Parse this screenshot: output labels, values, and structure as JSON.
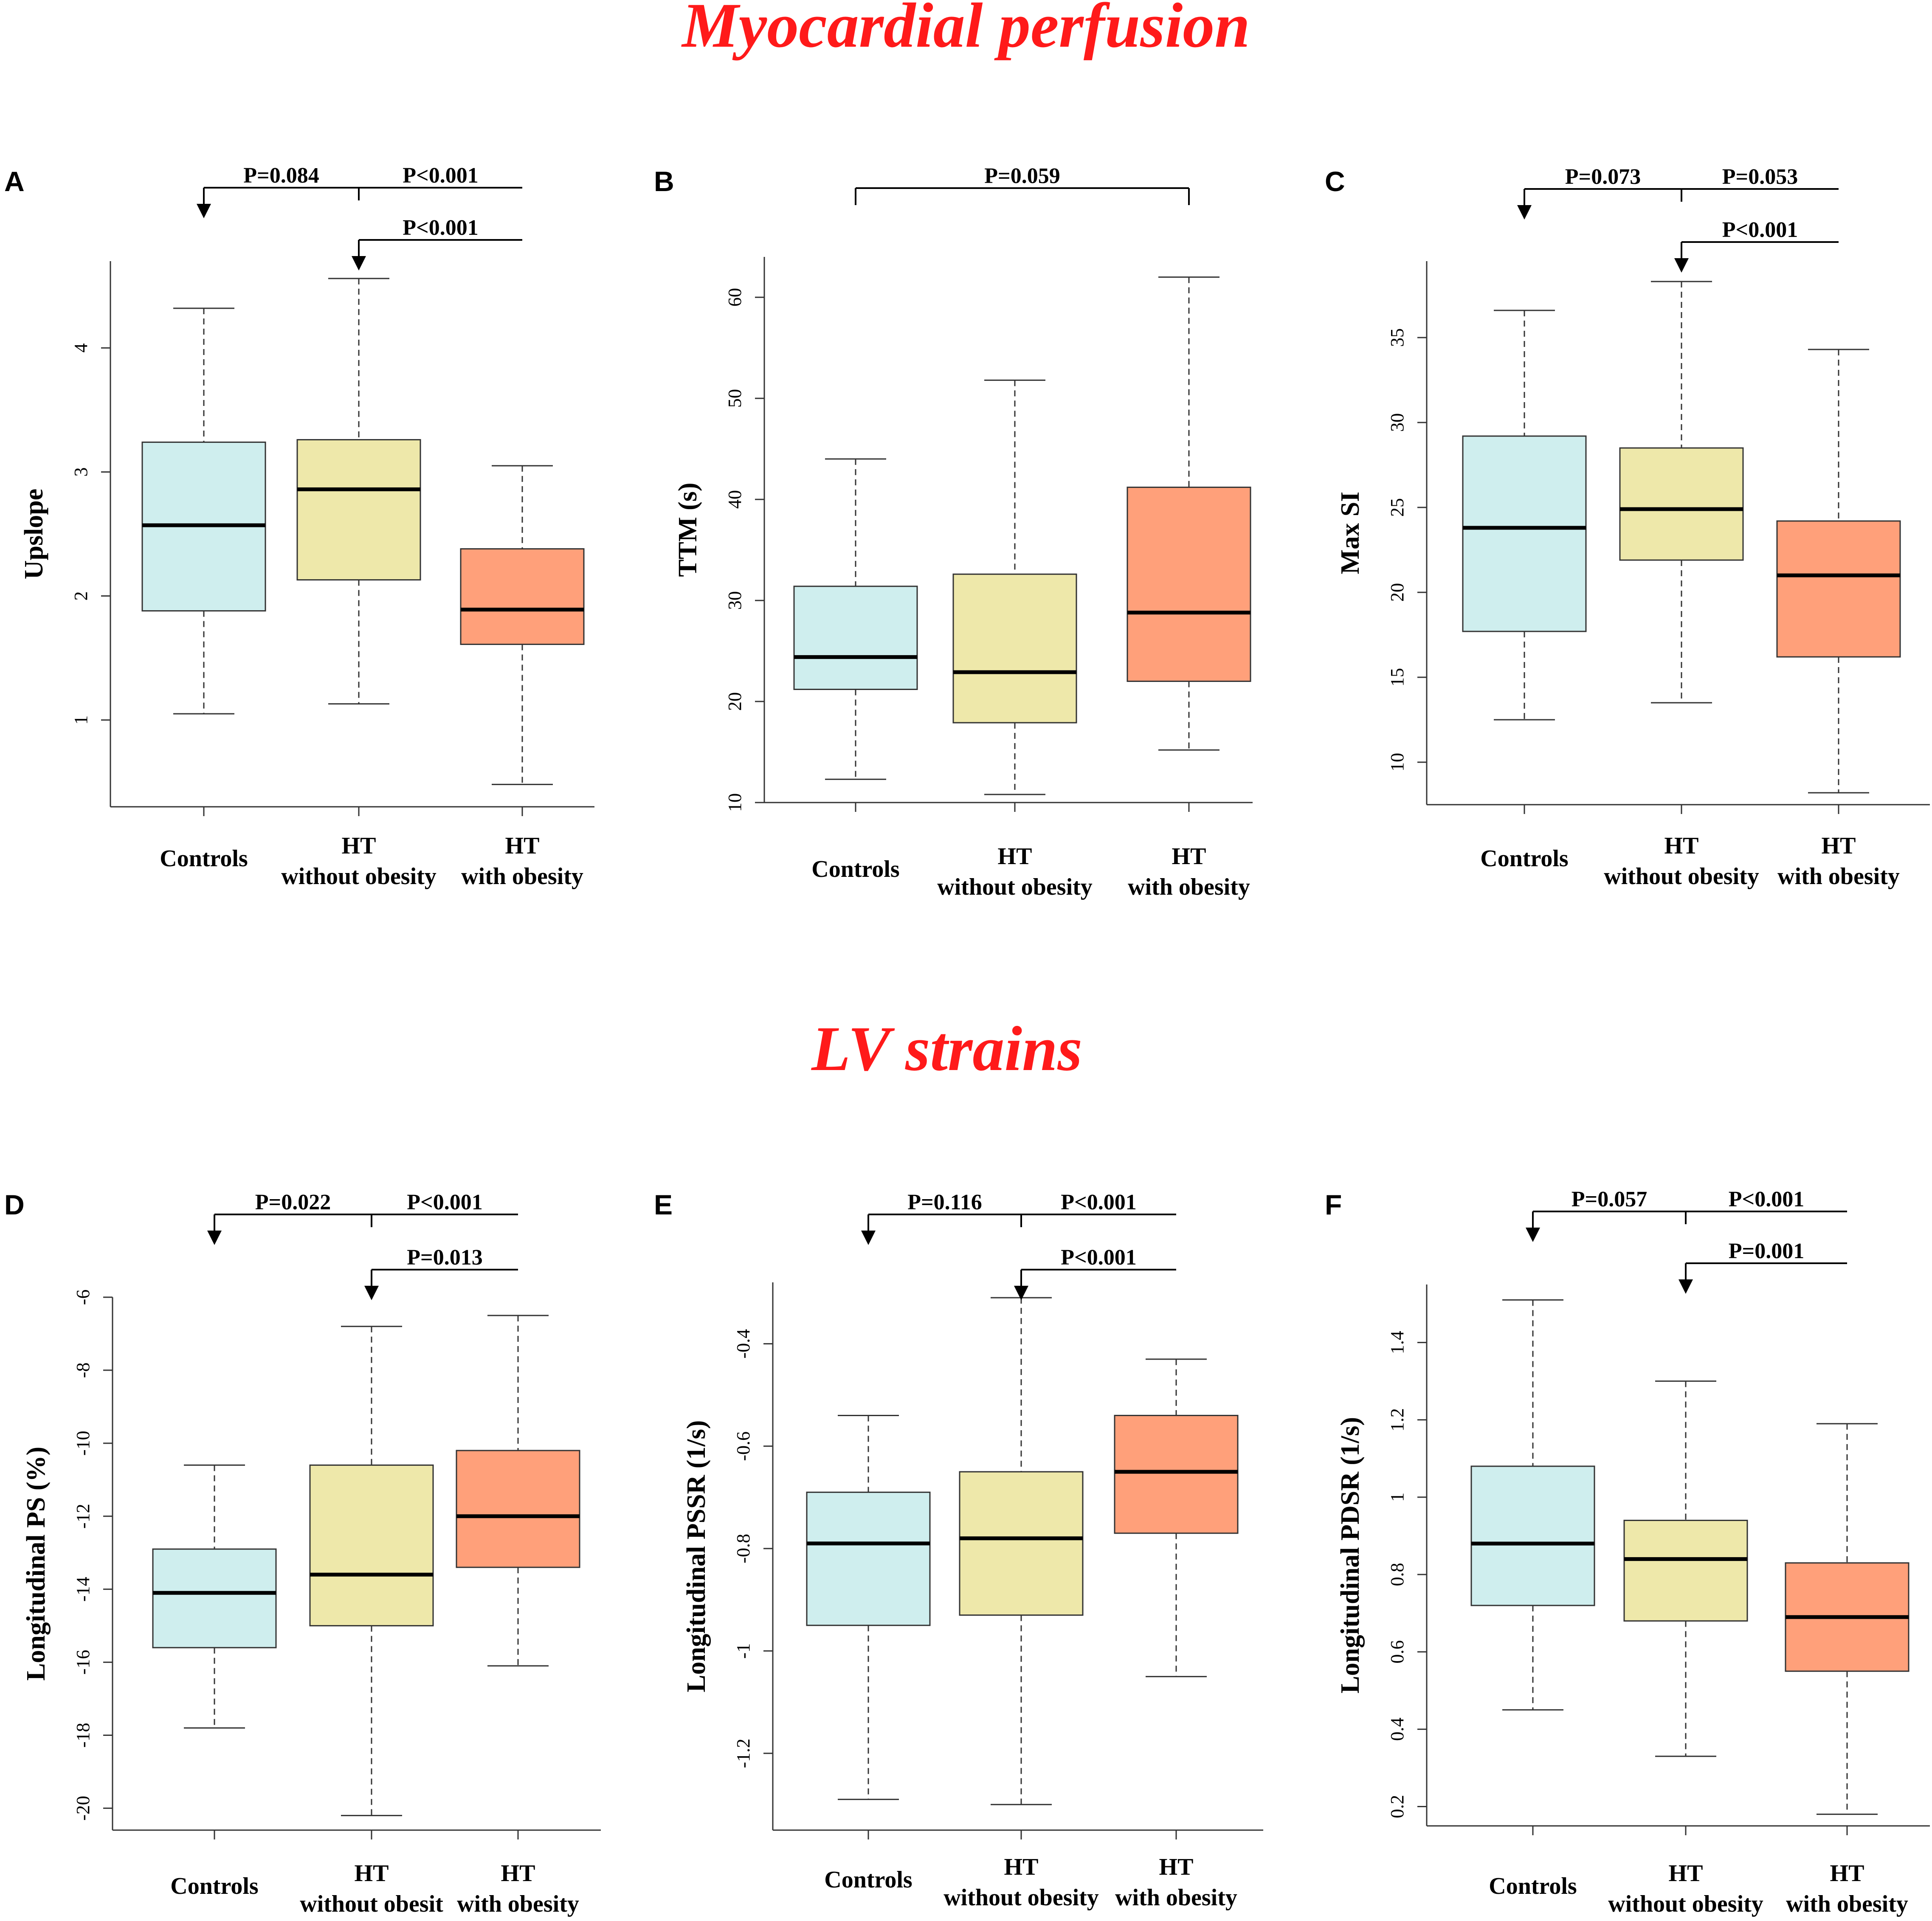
{
  "section_titles": {
    "perfusion": "Myocardial perfusion",
    "strains": "LV strains"
  },
  "colors": {
    "title": "#ff1a1a",
    "controls": "#cfeeee",
    "ht_without_obesity": "#eee8aa",
    "ht_with_obesity": "#ffa07a",
    "axis": "#333333"
  },
  "chart_data": [
    {
      "type": "box",
      "panel": "A",
      "ylabel": "Upslope",
      "categories": [
        [
          "Controls"
        ],
        [
          "HT",
          "without obesity"
        ],
        [
          "HT",
          "with obesity"
        ]
      ],
      "ylim": [
        0.3,
        4.7
      ],
      "yticks": [
        1,
        2,
        3,
        4
      ],
      "boxes": [
        {
          "min": 1.05,
          "q1": 1.88,
          "median": 2.57,
          "q3": 3.24,
          "max": 4.32
        },
        {
          "min": 1.13,
          "q1": 2.13,
          "median": 2.86,
          "q3": 3.26,
          "max": 4.56
        },
        {
          "min": 0.48,
          "q1": 1.61,
          "median": 1.89,
          "q3": 2.38,
          "max": 3.05
        }
      ],
      "comparisons": [
        {
          "p": "P=0.084",
          "from": 1,
          "to": 0,
          "level": 0
        },
        {
          "p": "P<0.001",
          "from": 1,
          "to": 2,
          "level": 0,
          "no_arrow": true
        },
        {
          "p": "P<0.001",
          "from": 2,
          "to": 1,
          "level": 1
        }
      ]
    },
    {
      "type": "box",
      "panel": "B",
      "ylabel": "TTM (s)",
      "categories": [
        [
          "Controls"
        ],
        [
          "HT",
          "without obesity"
        ],
        [
          "HT",
          "with obesity"
        ]
      ],
      "ylim": [
        10,
        64
      ],
      "yticks": [
        10,
        20,
        30,
        40,
        50,
        60
      ],
      "boxes": [
        {
          "min": 12.3,
          "q1": 21.2,
          "median": 24.4,
          "q3": 31.4,
          "max": 44.0
        },
        {
          "min": 10.8,
          "q1": 17.9,
          "median": 22.9,
          "q3": 32.6,
          "max": 51.8
        },
        {
          "min": 15.2,
          "q1": 22.0,
          "median": 28.8,
          "q3": 41.2,
          "max": 62.0
        }
      ],
      "comparisons": [
        {
          "p": "P=0.059",
          "from": 0,
          "to": 2,
          "level": 0,
          "bracket": true
        }
      ]
    },
    {
      "type": "box",
      "panel": "C",
      "ylabel": "Max SI",
      "categories": [
        [
          "Controls"
        ],
        [
          "HT",
          "without obesity"
        ],
        [
          "HT",
          "with obesity"
        ]
      ],
      "ylim": [
        7.5,
        39.5
      ],
      "yticks": [
        10,
        15,
        20,
        25,
        30,
        35
      ],
      "boxes": [
        {
          "min": 12.5,
          "q1": 17.7,
          "median": 23.8,
          "q3": 29.2,
          "max": 36.6
        },
        {
          "min": 13.5,
          "q1": 21.9,
          "median": 24.9,
          "q3": 28.5,
          "max": 38.3
        },
        {
          "min": 8.2,
          "q1": 16.2,
          "median": 21.0,
          "q3": 24.2,
          "max": 34.3
        }
      ],
      "comparisons": [
        {
          "p": "P=0.073",
          "from": 1,
          "to": 0,
          "level": 0
        },
        {
          "p": "P=0.053",
          "from": 1,
          "to": 2,
          "level": 0,
          "no_arrow": true
        },
        {
          "p": "P<0.001",
          "from": 2,
          "to": 1,
          "level": 1
        }
      ]
    },
    {
      "type": "box",
      "panel": "D",
      "ylabel": "Longitudinal PS (%)",
      "categories": [
        [
          "Controls"
        ],
        [
          "HT",
          "without obesit"
        ],
        [
          "HT",
          "with obesity"
        ]
      ],
      "ylim": [
        -20.6,
        -6.0
      ],
      "yticks": [
        -20,
        -18,
        -16,
        -14,
        -12,
        -10,
        -8,
        -6
      ],
      "boxes": [
        {
          "min": -17.8,
          "q1": -15.6,
          "median": -14.1,
          "q3": -12.9,
          "max": -10.6
        },
        {
          "min": -20.2,
          "q1": -15.0,
          "median": -13.6,
          "q3": -10.6,
          "max": -6.8
        },
        {
          "min": -16.1,
          "q1": -13.4,
          "median": -12.0,
          "q3": -10.2,
          "max": -6.5
        }
      ],
      "comparisons": [
        {
          "p": "P=0.022",
          "from": 1,
          "to": 0,
          "level": 0
        },
        {
          "p": "P<0.001",
          "from": 1,
          "to": 2,
          "level": 0,
          "no_arrow": true
        },
        {
          "p": "P=0.013",
          "from": 2,
          "to": 1,
          "level": 1
        }
      ]
    },
    {
      "type": "box",
      "panel": "E",
      "ylabel": "Longitudinal PSSR (1/s)",
      "categories": [
        [
          "Controls"
        ],
        [
          "HT",
          "without obesity"
        ],
        [
          "HT",
          "with obesity"
        ]
      ],
      "ylim": [
        -1.35,
        -0.28
      ],
      "yticks": [
        -1.2,
        -1.0,
        -0.8,
        -0.6,
        -0.4
      ],
      "boxes": [
        {
          "min": -1.29,
          "q1": -0.95,
          "median": -0.79,
          "q3": -0.69,
          "max": -0.54
        },
        {
          "min": -1.3,
          "q1": -0.93,
          "median": -0.78,
          "q3": -0.65,
          "max": -0.31
        },
        {
          "min": -1.05,
          "q1": -0.77,
          "median": -0.65,
          "q3": -0.54,
          "max": -0.43
        }
      ],
      "comparisons": [
        {
          "p": "P=0.116",
          "from": 1,
          "to": 0,
          "level": 0
        },
        {
          "p": "P<0.001",
          "from": 1,
          "to": 2,
          "level": 0,
          "no_arrow": true
        },
        {
          "p": "P<0.001",
          "from": 2,
          "to": 1,
          "level": 1
        }
      ]
    },
    {
      "type": "box",
      "panel": "F",
      "ylabel": "Longitudinal PDSR (1/s)",
      "categories": [
        [
          "Controls"
        ],
        [
          "HT",
          "without obesity"
        ],
        [
          "HT",
          "with obesity"
        ]
      ],
      "ylim": [
        0.15,
        1.55
      ],
      "yticks": [
        0.2,
        0.4,
        0.6,
        0.8,
        1.0,
        1.2,
        1.4
      ],
      "boxes": [
        {
          "min": 0.45,
          "q1": 0.72,
          "median": 0.88,
          "q3": 1.08,
          "max": 1.51
        },
        {
          "min": 0.33,
          "q1": 0.68,
          "median": 0.84,
          "q3": 0.94,
          "max": 1.3
        },
        {
          "min": 0.18,
          "q1": 0.55,
          "median": 0.69,
          "q3": 0.83,
          "max": 1.19
        }
      ],
      "comparisons": [
        {
          "p": "P=0.057",
          "from": 1,
          "to": 0,
          "level": 0
        },
        {
          "p": "P<0.001",
          "from": 1,
          "to": 2,
          "level": 0,
          "no_arrow": true
        },
        {
          "p": "P=0.001",
          "from": 2,
          "to": 1,
          "level": 1
        }
      ]
    }
  ]
}
